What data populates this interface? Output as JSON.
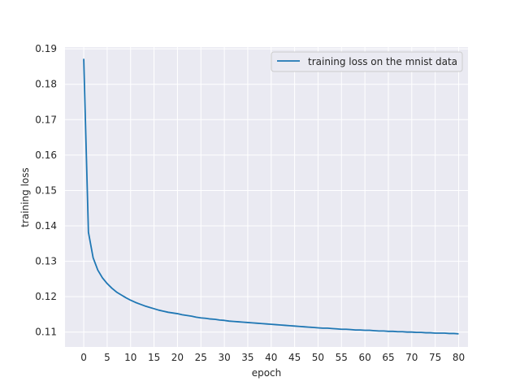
{
  "chart_data": {
    "type": "line",
    "xlabel": "epoch",
    "ylabel": "training loss",
    "xlim": [
      -4,
      82
    ],
    "ylim": [
      0.1058,
      0.1905
    ],
    "xticks": [
      0,
      5,
      10,
      15,
      20,
      25,
      30,
      35,
      40,
      45,
      50,
      55,
      60,
      65,
      70,
      75,
      80
    ],
    "yticks": [
      0.11,
      0.12,
      0.13,
      0.14,
      0.15,
      0.16,
      0.17,
      0.18,
      0.19
    ],
    "ytick_labels": [
      "0.11",
      "0.12",
      "0.13",
      "0.14",
      "0.15",
      "0.16",
      "0.17",
      "0.18",
      "0.19"
    ],
    "grid": true,
    "legend_position": "top-right",
    "series": [
      {
        "name": "training loss on the mnist data",
        "color": "#1f77b4",
        "x": [
          0,
          1,
          2,
          3,
          4,
          5,
          6,
          7,
          8,
          9,
          10,
          11,
          12,
          13,
          14,
          15,
          16,
          17,
          18,
          19,
          20,
          21,
          22,
          23,
          24,
          25,
          26,
          27,
          28,
          29,
          30,
          31,
          32,
          33,
          34,
          35,
          36,
          37,
          38,
          39,
          40,
          41,
          42,
          43,
          44,
          45,
          46,
          47,
          48,
          49,
          50,
          51,
          52,
          53,
          54,
          55,
          56,
          57,
          58,
          59,
          60,
          61,
          62,
          63,
          64,
          65,
          66,
          67,
          68,
          69,
          70,
          71,
          72,
          73,
          74,
          75,
          76,
          77,
          78,
          79,
          80
        ],
        "values": [
          0.1872,
          0.1382,
          0.131,
          0.1275,
          0.1253,
          0.1237,
          0.1224,
          0.1213,
          0.1205,
          0.1197,
          0.119,
          0.1184,
          0.1179,
          0.1174,
          0.117,
          0.1166,
          0.1162,
          0.1159,
          0.1156,
          0.1154,
          0.1152,
          0.1149,
          0.1147,
          0.1145,
          0.1142,
          0.114,
          0.1139,
          0.1137,
          0.1136,
          0.1134,
          0.1133,
          0.1131,
          0.113,
          0.1129,
          0.1128,
          0.1127,
          0.1126,
          0.1125,
          0.1124,
          0.1123,
          0.1122,
          0.1121,
          0.112,
          0.1119,
          0.1118,
          0.1117,
          0.1116,
          0.1115,
          0.1114,
          0.1113,
          0.1112,
          0.1111,
          0.1111,
          0.111,
          0.1109,
          0.1108,
          0.1108,
          0.1107,
          0.1106,
          0.1106,
          0.1105,
          0.1105,
          0.1104,
          0.1103,
          0.1103,
          0.1102,
          0.1102,
          0.1101,
          0.1101,
          0.11,
          0.11,
          0.1099,
          0.1099,
          0.1098,
          0.1098,
          0.1097,
          0.1097,
          0.1097,
          0.1096,
          0.1096,
          0.1095
        ]
      }
    ]
  }
}
